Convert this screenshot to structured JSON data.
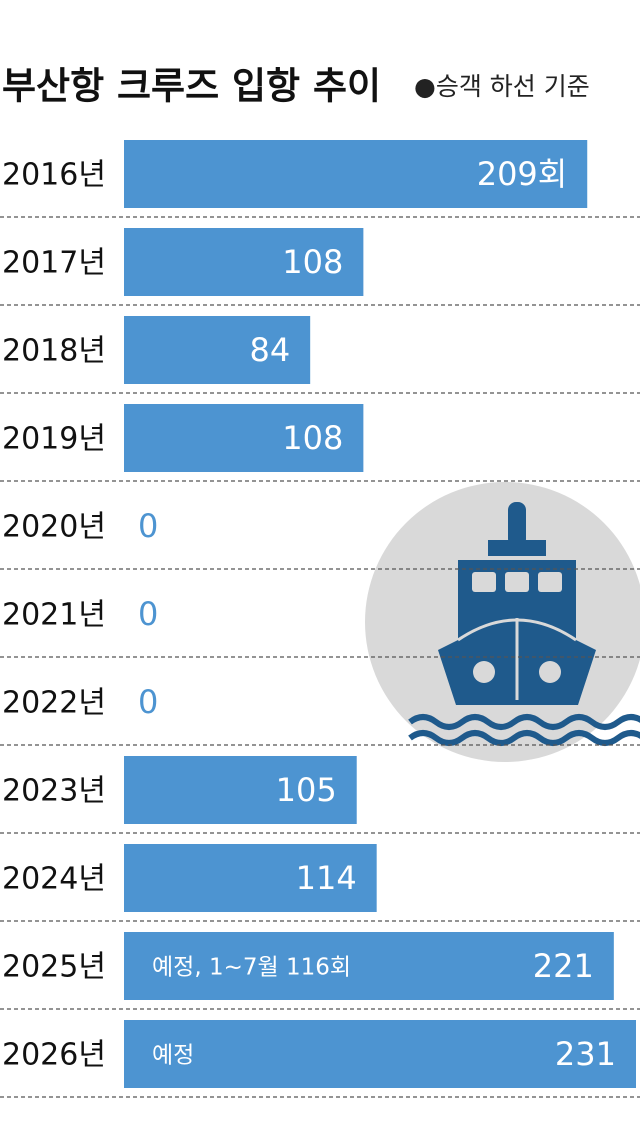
{
  "chart_data": {
    "type": "bar",
    "orientation": "horizontal",
    "title": "부산항 크루즈 입항 추이",
    "subtitle": "●승객 하선 기준",
    "categories": [
      "2016년",
      "2017년",
      "2018년",
      "2019년",
      "2020년",
      "2021년",
      "2022년",
      "2023년",
      "2024년",
      "2025년",
      "2026년"
    ],
    "values": [
      209,
      108,
      84,
      108,
      0,
      0,
      0,
      105,
      114,
      221,
      231
    ],
    "value_labels": [
      "209회",
      "108",
      "84",
      "108",
      "0",
      "0",
      "0",
      "105",
      "114",
      "221",
      "231"
    ],
    "annotations": [
      "예정, 1~7월 116회",
      "예정"
    ],
    "color": "#4d94d1"
  }
}
